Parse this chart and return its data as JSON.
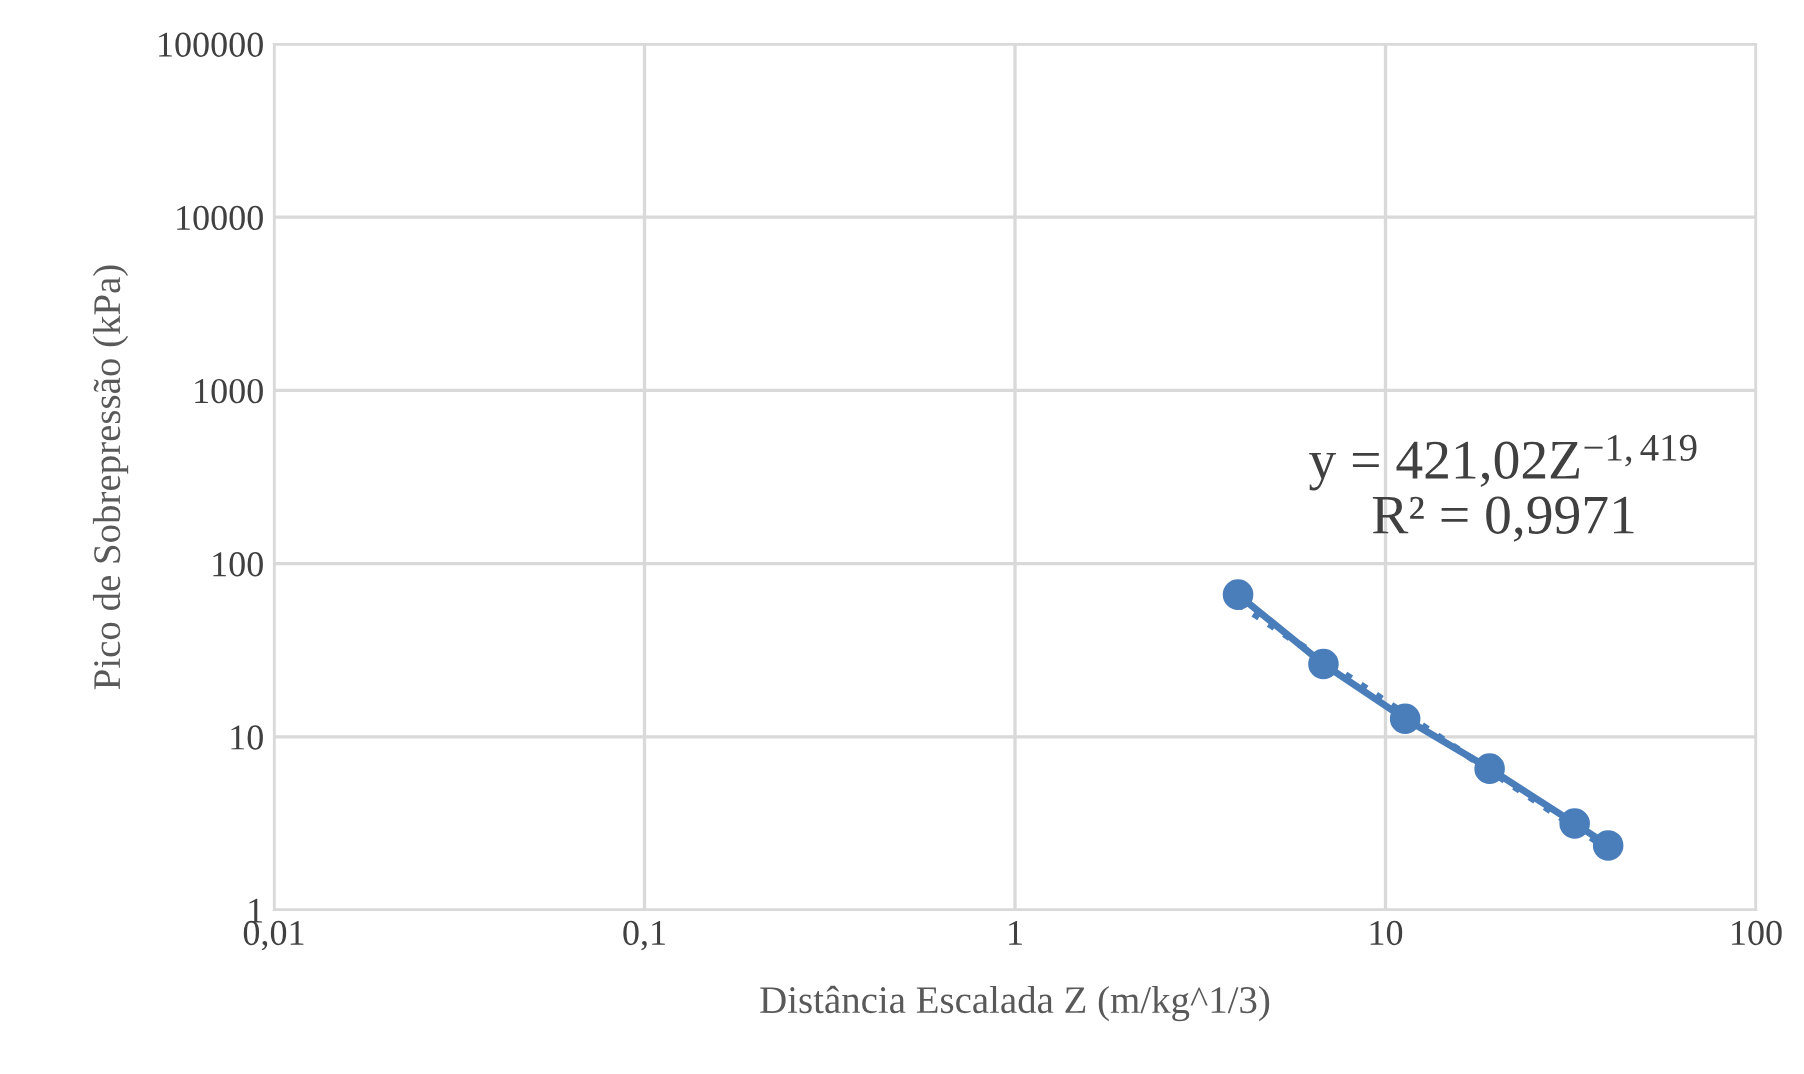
{
  "chart_data": {
    "type": "line",
    "xlabel": "Distância Escalada Z (m/kg^1/3)",
    "ylabel": "Pico de Sobrepressão (kPa)",
    "log": "xy",
    "grid": true,
    "xlim": [
      0.01,
      100
    ],
    "xticks": [
      {
        "value": 0.01,
        "label": "0,01"
      },
      {
        "value": 0.1,
        "label": "0,1"
      },
      1,
      10,
      100
    ],
    "ylim": [
      1,
      100000
    ],
    "yticks": [
      1,
      10,
      100,
      1000,
      10000,
      100000
    ],
    "series": [
      {
        "color": "#4a7ebb",
        "marker": "circle",
        "line_style": "solid",
        "x": [
          4.0,
          6.8,
          11.3,
          19.1,
          32.4,
          39.9
        ],
        "values": [
          66.2,
          26.3,
          12.7,
          6.55,
          3.16,
          2.36
        ]
      },
      {
        "color": "#4a7ebb",
        "marker": "none",
        "line_style": "dotted",
        "x": [
          4.0,
          39.9
        ],
        "values": [
          58.9,
          2.25
        ]
      }
    ],
    "annotations": [
      "y = 421,02Z$^{−1,419}$\nR² = 0,9971"
    ]
  }
}
